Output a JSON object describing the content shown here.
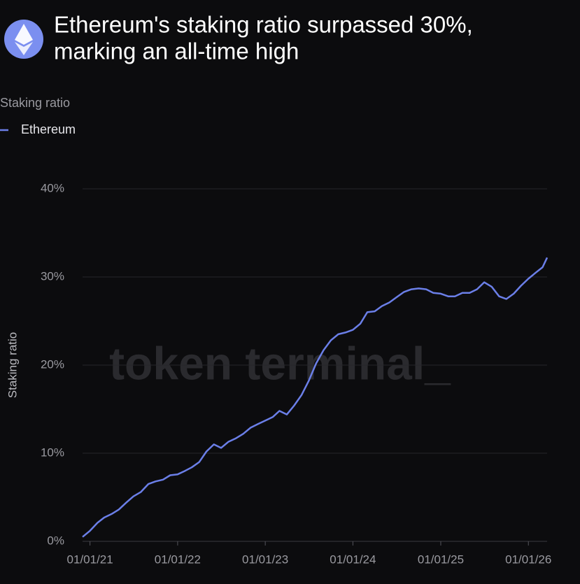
{
  "chart_data": {
    "type": "line",
    "title_lines": [
      "Ethereum's staking ratio surpassed 30%,",
      "marking an all-time high"
    ],
    "subtitle": "Staking ratio",
    "y_label": "Staking ratio",
    "watermark": "token terminal_",
    "x": [
      "2020-12-01",
      "2021-01-01",
      "2021-02-01",
      "2021-03-01",
      "2021-04-01",
      "2021-05-01",
      "2021-06-01",
      "2021-07-01",
      "2021-08-01",
      "2021-09-01",
      "2021-10-01",
      "2021-11-01",
      "2021-12-01",
      "2022-01-01",
      "2022-02-01",
      "2022-03-01",
      "2022-04-01",
      "2022-05-01",
      "2022-06-01",
      "2022-07-01",
      "2022-08-01",
      "2022-09-01",
      "2022-10-01",
      "2022-11-01",
      "2022-12-01",
      "2023-01-01",
      "2023-02-01",
      "2023-03-01",
      "2023-04-01",
      "2023-05-01",
      "2023-06-01",
      "2023-07-01",
      "2023-08-01",
      "2023-09-01",
      "2023-10-01",
      "2023-11-01",
      "2023-12-01",
      "2024-01-01",
      "2024-02-01",
      "2024-03-01",
      "2024-04-01",
      "2024-05-01",
      "2024-06-01",
      "2024-07-01",
      "2024-08-01",
      "2024-09-01",
      "2024-10-01",
      "2024-11-01",
      "2024-12-01",
      "2025-01-01",
      "2025-02-01",
      "2025-03-01",
      "2025-04-01",
      "2025-05-01",
      "2025-06-01",
      "2025-07-01",
      "2025-08-01",
      "2025-09-01",
      "2025-10-01",
      "2025-11-01",
      "2025-12-01",
      "2026-01-01",
      "2026-02-01",
      "2026-03-01",
      "2026-03-20"
    ],
    "series": [
      {
        "name": "Ethereum",
        "color": "#6b7fe8",
        "values": [
          0.5,
          1.2,
          2.1,
          2.7,
          3.1,
          3.6,
          4.4,
          5.1,
          5.6,
          6.5,
          6.8,
          7.0,
          7.5,
          7.6,
          8.0,
          8.4,
          9.0,
          10.2,
          11.0,
          10.6,
          11.3,
          11.7,
          12.2,
          12.9,
          13.3,
          13.7,
          14.1,
          14.8,
          14.4,
          15.4,
          16.6,
          18.2,
          20.2,
          21.7,
          22.8,
          23.5,
          23.7,
          24.0,
          24.7,
          26.0,
          26.1,
          26.7,
          27.1,
          27.7,
          28.3,
          28.6,
          28.7,
          28.6,
          28.2,
          28.1,
          27.8,
          27.8,
          28.2,
          28.2,
          28.6,
          29.4,
          28.9,
          27.8,
          27.5,
          28.1,
          29.0,
          29.8,
          30.5,
          31.1,
          32.2
        ]
      }
    ],
    "xlim": [
      "2020-12-01",
      "2026-03-20"
    ],
    "xticks": [
      {
        "value": "2021-01-01",
        "label": "01/01/21"
      },
      {
        "value": "2022-01-01",
        "label": "01/01/22"
      },
      {
        "value": "2023-01-01",
        "label": "01/01/23"
      },
      {
        "value": "2024-01-01",
        "label": "01/01/24"
      },
      {
        "value": "2025-01-01",
        "label": "01/01/25"
      },
      {
        "value": "2026-01-01",
        "label": "01/01/26"
      }
    ],
    "ylim": [
      0,
      40
    ],
    "yticks": [
      {
        "value": 0,
        "label": "0%"
      },
      {
        "value": 10,
        "label": "10%"
      },
      {
        "value": 20,
        "label": "20%"
      },
      {
        "value": 30,
        "label": "30%"
      },
      {
        "value": 40,
        "label": "40%"
      }
    ],
    "grid": true
  }
}
